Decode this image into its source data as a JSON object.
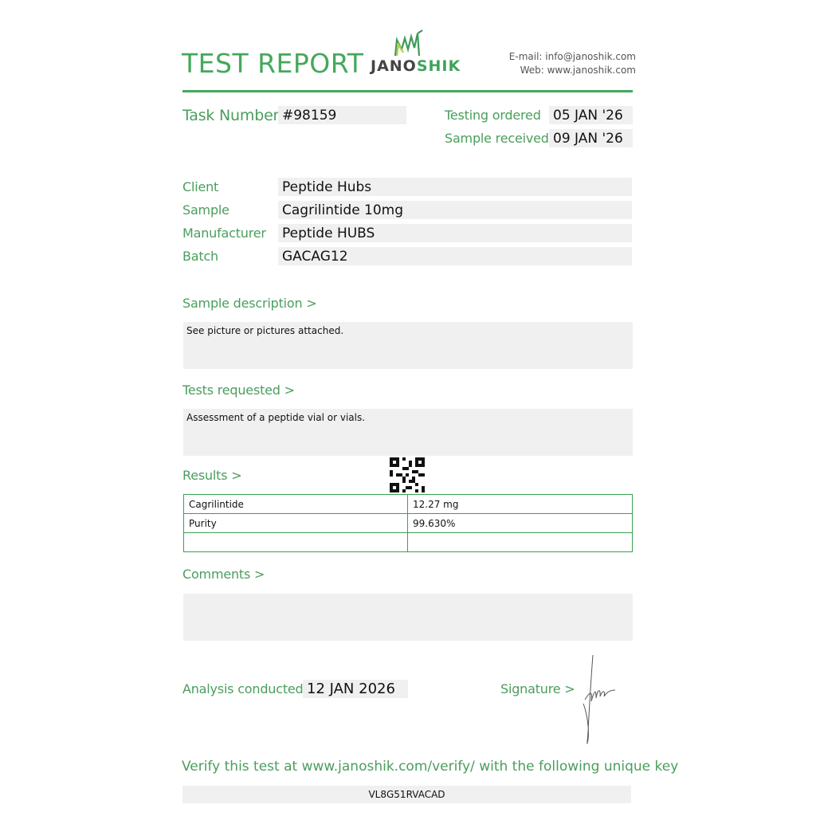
{
  "header": {
    "title": "TEST REPORT",
    "logo_text_dark": "JANO",
    "logo_text_green": "SHIK",
    "email": "E-mail: info@janoshik.com",
    "web": "Web: www.janoshik.com"
  },
  "task": {
    "label": "Task Number",
    "value": "#98159"
  },
  "dates": {
    "ordered_label": "Testing ordered  >",
    "ordered": "05 JAN '26",
    "received_label": "Sample received >",
    "received": "09 JAN '26"
  },
  "info": [
    {
      "label": "Client",
      "value": "Peptide Hubs"
    },
    {
      "label": "Sample",
      "value": "Cagrilintide 10mg"
    },
    {
      "label": "Manufacturer",
      "value": "Peptide HUBS"
    },
    {
      "label": "Batch",
      "value": "GACAG12"
    }
  ],
  "sample_description": {
    "label": "Sample description >",
    "text": "See picture or pictures attached."
  },
  "tests_requested": {
    "label": "Tests requested >",
    "text": "Assessment of a peptide vial or vials."
  },
  "results": {
    "label": "Results >",
    "rows": [
      [
        "Cagrilintide",
        "12.27 mg"
      ],
      [
        "Purity",
        "99.630%"
      ],
      [
        "",
        ""
      ]
    ]
  },
  "comments": {
    "label": "Comments >",
    "text": ""
  },
  "analysis": {
    "label": "Analysis conducted >",
    "date": "12 JAN 2026"
  },
  "signature": {
    "label": "Signature >"
  },
  "verify": {
    "text": "Verify this test at www.janoshik.com/verify/ with the following unique key",
    "key": "VL8G51RVACAD"
  },
  "colors": {
    "accent": "#4a9e5c",
    "field_bg": "#f0f0f0"
  }
}
